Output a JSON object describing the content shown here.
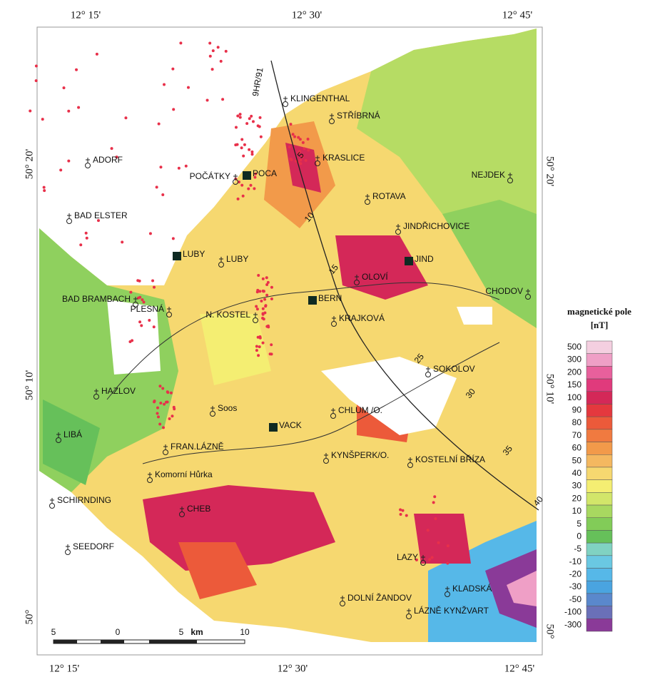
{
  "coordinates": {
    "top": [
      "12° 15'",
      "12° 30'",
      "12° 45'"
    ],
    "bottom": [
      "12° 15'",
      "12° 30'",
      "12° 45'"
    ],
    "left": [
      "50° 20'",
      "50° 10'",
      "50°"
    ],
    "right": [
      "50° 20'",
      "50° 10'",
      "50°"
    ]
  },
  "places": [
    "KLINGENTHAL",
    "STŘÍBRNÁ",
    "KRASLICE",
    "ADORF",
    "POČÁTKY",
    "NEJDEK",
    "ROTAVA",
    "BAD ELSTER",
    "JINDŘICHOVICE",
    "LUBY",
    "OLOVÍ",
    "CHODOV",
    "BAD BRAMBACH",
    "PLESNÁ",
    "N. KOSTEL",
    "KRAJKOVÁ",
    "SOKOLOV",
    "HAZLOV",
    "Soos",
    "CHLUM /O.",
    "LIBÁ",
    "FRAN.LÁZNĚ",
    "KYNŠPERK/O.",
    "KOSTELNÍ BŘÍZA",
    "Komorní Hůrka",
    "SCHIRNDING",
    "CHEB",
    "SEEDORF",
    "LAZY",
    "DOLNÍ ŽANDOV",
    "KLADSKÁ",
    "LÁZNĚ KYNŽVART"
  ],
  "stations": [
    "POCA",
    "LUBY",
    "JIND",
    "BERN",
    "VACK"
  ],
  "profile": {
    "label": "9HR/91",
    "km": [
      "5",
      "10",
      "15",
      "25",
      "30",
      "35",
      "40"
    ]
  },
  "scale_bar": {
    "ticks": [
      "5",
      "0",
      "5",
      "10"
    ],
    "unit": "km"
  },
  "legend": {
    "title": "magnetické pole",
    "unit": "[nT]",
    "items": [
      {
        "label": "500",
        "color": "#f4cfe0"
      },
      {
        "label": "300",
        "color": "#ef9fc6"
      },
      {
        "label": "200",
        "color": "#e8609c"
      },
      {
        "label": "150",
        "color": "#e03a7c"
      },
      {
        "label": "100",
        "color": "#d42858"
      },
      {
        "label": "90",
        "color": "#e4383e"
      },
      {
        "label": "80",
        "color": "#ec5a3a"
      },
      {
        "label": "70",
        "color": "#f07a40"
      },
      {
        "label": "60",
        "color": "#f29a4a"
      },
      {
        "label": "50",
        "color": "#f4b860"
      },
      {
        "label": "40",
        "color": "#f6d870"
      },
      {
        "label": "30",
        "color": "#f4ee72"
      },
      {
        "label": "20",
        "color": "#d2e66a"
      },
      {
        "label": "10",
        "color": "#a8d860"
      },
      {
        "label": "5",
        "color": "#82cc58"
      },
      {
        "label": "0",
        "color": "#66c05a"
      },
      {
        "label": "-5",
        "color": "#80d2c2"
      },
      {
        "label": "-10",
        "color": "#6ac8e2"
      },
      {
        "label": "-20",
        "color": "#56b8e8"
      },
      {
        "label": "-30",
        "color": "#4aa4e0"
      },
      {
        "label": "-50",
        "color": "#5a88cc"
      },
      {
        "label": "-100",
        "color": "#6a70b8"
      },
      {
        "label": "-300",
        "color": "#8a3a98"
      }
    ]
  }
}
